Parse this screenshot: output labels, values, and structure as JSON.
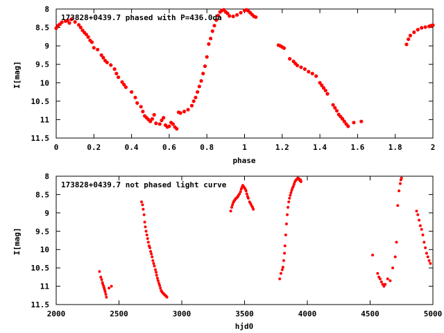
{
  "chart_data": [
    {
      "type": "scatter",
      "title": "173828+0439.7 phased with P=436.0da",
      "xlabel": "phase",
      "ylabel": "I[mag]",
      "xlim": [
        0,
        2
      ],
      "ylim": [
        8,
        11.5
      ],
      "y_inverted": true,
      "xticks": [
        "0",
        "0.2",
        "0.4",
        "0.6",
        "0.8",
        "1",
        "1.2",
        "1.4",
        "1.6",
        "1.8",
        "2"
      ],
      "yticks": [
        "8",
        "8.5",
        "9",
        "9.5",
        "10",
        "10.5",
        "11",
        "11.5"
      ],
      "marker_color": "#ff0000",
      "grid": false,
      "series": [
        {
          "x": [
            0.0,
            0.01,
            0.02,
            0.03,
            0.05,
            0.06,
            0.07,
            0.08,
            0.1,
            0.12,
            0.13,
            0.14,
            0.15,
            0.16,
            0.17,
            0.18,
            0.19,
            0.2,
            0.22,
            0.24,
            0.25,
            0.26,
            0.27,
            0.29,
            0.31,
            0.32,
            0.33,
            0.35,
            0.36,
            0.37,
            0.4,
            0.42,
            0.43,
            0.45,
            0.46,
            0.47,
            0.48,
            0.49,
            0.5,
            0.51,
            0.52,
            0.53,
            0.55,
            0.56,
            0.57,
            0.58,
            0.59,
            0.6,
            0.61,
            0.62,
            0.63,
            0.64,
            0.65,
            0.66,
            0.68,
            0.7,
            0.72,
            0.73,
            0.74,
            0.75,
            0.76,
            0.77,
            0.78,
            0.79,
            0.8,
            0.81,
            0.82,
            0.83,
            0.84,
            0.85,
            0.86,
            0.87,
            0.88,
            0.89,
            0.9,
            0.91,
            0.92,
            0.94,
            0.96,
            0.98,
            1.0,
            1.01,
            1.02,
            1.03,
            1.04,
            1.05,
            1.06,
            1.18,
            1.19,
            1.2,
            1.21,
            1.24,
            1.26,
            1.27,
            1.28,
            1.3,
            1.32,
            1.34,
            1.36,
            1.38,
            1.4,
            1.41,
            1.42,
            1.43,
            1.44,
            1.47,
            1.48,
            1.49,
            1.5,
            1.51,
            1.52,
            1.53,
            1.54,
            1.55,
            1.58,
            1.62,
            1.86,
            1.87,
            1.88,
            1.9,
            1.92,
            1.94,
            1.96,
            1.98,
            1.99,
            2.0
          ],
          "y": [
            8.52,
            8.45,
            8.41,
            8.36,
            8.33,
            8.31,
            8.38,
            8.28,
            8.35,
            8.43,
            8.5,
            8.58,
            8.64,
            8.69,
            8.76,
            8.85,
            8.9,
            9.05,
            9.1,
            9.25,
            9.32,
            9.4,
            9.45,
            9.52,
            9.63,
            9.75,
            9.85,
            9.98,
            10.05,
            10.12,
            10.25,
            10.4,
            10.55,
            10.65,
            10.78,
            10.9,
            10.95,
            11.0,
            11.05,
            10.98,
            10.87,
            11.1,
            11.12,
            11.02,
            10.95,
            11.15,
            11.2,
            11.18,
            11.08,
            11.12,
            11.2,
            11.25,
            10.8,
            10.82,
            10.78,
            10.73,
            10.62,
            10.5,
            10.4,
            10.25,
            10.1,
            9.95,
            9.75,
            9.55,
            9.3,
            8.95,
            8.8,
            8.6,
            8.45,
            8.3,
            8.18,
            8.08,
            8.04,
            8.02,
            8.08,
            8.12,
            8.19,
            8.2,
            8.16,
            8.1,
            8.04,
            8.02,
            8.05,
            8.1,
            8.15,
            8.2,
            8.22,
            8.98,
            9.0,
            9.03,
            9.06,
            9.35,
            9.42,
            9.48,
            9.53,
            9.58,
            9.63,
            9.7,
            9.75,
            9.82,
            10.0,
            10.07,
            10.14,
            10.21,
            10.3,
            10.6,
            10.68,
            10.76,
            10.86,
            10.92,
            10.98,
            11.05,
            11.12,
            11.18,
            11.08,
            11.05,
            8.96,
            8.82,
            8.72,
            8.63,
            8.56,
            8.51,
            8.49,
            8.47,
            8.45,
            8.44
          ]
        }
      ]
    },
    {
      "type": "scatter",
      "title": "173828+0439.7 not phased light curve",
      "xlabel": "hjd0",
      "ylabel": "I[mag]",
      "xlim": [
        2000,
        5000
      ],
      "ylim": [
        8,
        11.5
      ],
      "y_inverted": true,
      "xticks": [
        "2000",
        "2500",
        "3000",
        "3500",
        "4000",
        "4500",
        "5000"
      ],
      "yticks": [
        "8",
        "8.5",
        "9",
        "9.5",
        "10",
        "10.5",
        "11",
        "11.5"
      ],
      "marker_color": "#ff0000",
      "grid": false,
      "series": [
        {
          "x": [
            2345,
            2355,
            2362,
            2368,
            2372,
            2378,
            2382,
            2386,
            2390,
            2395,
            2400,
            2420,
            2440,
            2680,
            2688,
            2693,
            2700,
            2705,
            2710,
            2716,
            2722,
            2728,
            2734,
            2740,
            2746,
            2752,
            2758,
            2764,
            2770,
            2776,
            2782,
            2790,
            2796,
            2800,
            2806,
            2812,
            2818,
            2824,
            2830,
            2836,
            2842,
            2848,
            2854,
            2860,
            2866,
            2872,
            2878,
            2882,
            3390,
            3398,
            3404,
            3410,
            3416,
            3422,
            3428,
            3434,
            3440,
            3446,
            3452,
            3460,
            3468,
            3474,
            3480,
            3486,
            3492,
            3500,
            3506,
            3512,
            3518,
            3524,
            3530,
            3540,
            3548,
            3556,
            3564,
            3570,
            3780,
            3790,
            3800,
            3806,
            3812,
            3818,
            3822,
            3828,
            3834,
            3840,
            3846,
            3852,
            3858,
            3864,
            3870,
            3876,
            3882,
            3888,
            3894,
            3900,
            3906,
            3912,
            3918,
            3924,
            3930,
            3936,
            3940,
            3946,
            3950,
            4520,
            4560,
            4570,
            4580,
            4590,
            4600,
            4610,
            4620,
            4640,
            4660,
            4680,
            4700,
            4710,
            4720,
            4730,
            4740,
            4745,
            4750,
            4870,
            4880,
            4890,
            4900,
            4910,
            4920,
            4930,
            4940,
            4950,
            4960,
            4970,
            4980
          ],
          "y": [
            10.6,
            10.75,
            10.82,
            10.9,
            10.95,
            11.0,
            11.05,
            11.1,
            11.15,
            11.22,
            11.3,
            11.05,
            11.0,
            8.7,
            8.78,
            8.9,
            9.05,
            9.25,
            9.38,
            9.5,
            9.6,
            9.7,
            9.8,
            9.9,
            9.95,
            10.05,
            10.12,
            10.2,
            10.3,
            10.38,
            10.45,
            10.55,
            10.62,
            10.7,
            10.78,
            10.85,
            10.92,
            10.98,
            11.05,
            11.12,
            11.15,
            11.18,
            11.2,
            11.22,
            11.24,
            11.26,
            11.28,
            11.3,
            8.95,
            8.85,
            8.78,
            8.72,
            8.68,
            8.65,
            8.62,
            8.6,
            8.58,
            8.56,
            8.52,
            8.48,
            8.42,
            8.35,
            8.3,
            8.25,
            8.28,
            8.32,
            8.35,
            8.4,
            8.48,
            8.55,
            8.6,
            8.7,
            8.75,
            8.8,
            8.85,
            8.9,
            10.8,
            10.65,
            10.55,
            10.48,
            10.3,
            10.1,
            9.9,
            9.6,
            9.3,
            9.05,
            8.85,
            8.7,
            8.6,
            8.52,
            8.45,
            8.38,
            8.32,
            8.28,
            8.22,
            8.16,
            8.12,
            8.1,
            8.08,
            8.05,
            8.06,
            8.08,
            8.12,
            8.1,
            8.15,
            10.15,
            10.65,
            10.75,
            10.8,
            10.88,
            10.95,
            11.0,
            10.95,
            10.8,
            10.85,
            10.5,
            10.2,
            9.8,
            8.8,
            8.4,
            8.2,
            8.1,
            8.05,
            8.95,
            9.05,
            9.2,
            9.35,
            9.45,
            9.6,
            9.8,
            9.95,
            10.1,
            10.2,
            10.3,
            10.38
          ]
        }
      ]
    }
  ]
}
